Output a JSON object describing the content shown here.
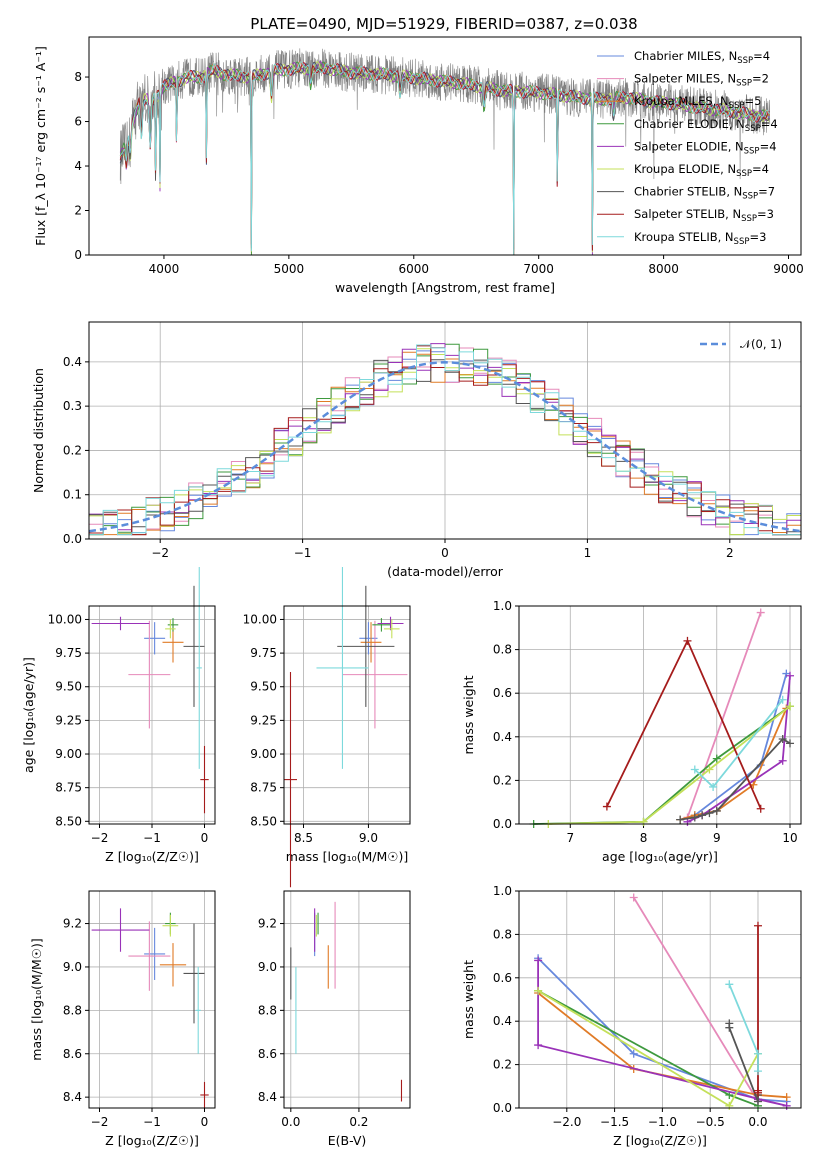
{
  "colors": {
    "Chabrier MILES": "#6688dd",
    "Salpeter MILES": "#e68aba",
    "Kroupa MILES": "#e07b27",
    "Chabrier ELODIE": "#3e9a3e",
    "Salpeter ELODIE": "#9932b8",
    "Kroupa ELODIE": "#c4e05a",
    "Chabrier STELIB": "#555555",
    "Salpeter STELIB": "#a51c1c",
    "Kroupa STELIB": "#7dd9dc",
    "data": "#808080"
  },
  "chart_data": [
    {
      "type": "line",
      "title": "PLATE=0490, MJD=51929, FIBERID=0387, z=0.038",
      "xlabel": "wavelength [Angstrom, rest frame]",
      "ylabel": "Flux [f_λ 10⁻¹⁷ erg cm⁻² s⁻¹ A⁻¹]",
      "xlim": [
        3400,
        9100
      ],
      "ylim": [
        0,
        9.8
      ],
      "xticks": [
        "4000",
        "5000",
        "6000",
        "7000",
        "8000",
        "9000"
      ],
      "yticks": [
        "0",
        "2",
        "4",
        "6",
        "8"
      ],
      "legend_position": "right",
      "series": [
        {
          "name": "Chabrier MILES, N_SSP=4",
          "label": "Chabrier MILES, N",
          "sub": "SSP",
          "n": "=4",
          "key": "Chabrier MILES"
        },
        {
          "name": "Salpeter MILES, N_SSP=2",
          "label": "Salpeter MILES, N",
          "sub": "SSP",
          "n": "=2",
          "key": "Salpeter MILES"
        },
        {
          "name": "Kroupa MILES, N_SSP=5",
          "label": "Kroupa MILES, N",
          "sub": "SSP",
          "n": "=5",
          "key": "Kroupa MILES"
        },
        {
          "name": "Chabrier ELODIE, N_SSP=4",
          "label": "Chabrier ELODIE, N",
          "sub": "SSP",
          "n": "=4",
          "key": "Chabrier ELODIE"
        },
        {
          "name": "Salpeter ELODIE, N_SSP=4",
          "label": "Salpeter ELODIE, N",
          "sub": "SSP",
          "n": "=4",
          "key": "Salpeter ELODIE"
        },
        {
          "name": "Kroupa ELODIE, N_SSP=4",
          "label": "Kroupa ELODIE, N",
          "sub": "SSP",
          "n": "=4",
          "key": "Kroupa ELODIE"
        },
        {
          "name": "Chabrier STELIB, N_SSP=7",
          "label": "Chabrier STELIB, N",
          "sub": "SSP",
          "n": "=7",
          "key": "Chabrier STELIB"
        },
        {
          "name": "Salpeter STELIB, N_SSP=3",
          "label": "Salpeter STELIB, N",
          "sub": "SSP",
          "n": "=3",
          "key": "Salpeter STELIB"
        },
        {
          "name": "Kroupa STELIB, N_SSP=3",
          "label": "Kroupa STELIB, N",
          "sub": "SSP",
          "n": "=3",
          "key": "Kroupa STELIB"
        }
      ],
      "continuum": {
        "x": [
          3650,
          3700,
          3750,
          3800,
          3850,
          3900,
          3950,
          4000,
          4100,
          4200,
          4300,
          4400,
          4500,
          4700,
          4900,
          5100,
          5300,
          5500,
          5800,
          6100,
          6400,
          6700,
          7000,
          7300,
          7500,
          7700,
          7900,
          8100,
          8300,
          8500,
          8700,
          8850
        ],
        "y": [
          4.4,
          5.0,
          6.0,
          6.9,
          7.0,
          6.9,
          7.2,
          7.6,
          7.8,
          8.0,
          8.0,
          8.3,
          8.1,
          8.0,
          8.3,
          8.4,
          8.4,
          8.2,
          8.1,
          7.9,
          7.7,
          7.4,
          7.3,
          7.1,
          7.0,
          7.1,
          6.9,
          6.8,
          6.6,
          6.5,
          6.3,
          6.2
        ]
      },
      "absorption_lines": [
        {
          "x": 3700,
          "depth": 1.0
        },
        {
          "x": 3730,
          "depth": 1.2
        },
        {
          "x": 3820,
          "depth": 1.5
        },
        {
          "x": 3890,
          "depth": 2.0
        },
        {
          "x": 3934,
          "depth": 4.5
        },
        {
          "x": 3968,
          "depth": 4.2
        },
        {
          "x": 4102,
          "depth": 3.2
        },
        {
          "x": 4340,
          "depth": 3.8
        },
        {
          "x": 4700,
          "depth": 7.8
        },
        {
          "x": 4861,
          "depth": 1.2
        },
        {
          "x": 5175,
          "depth": 0.7
        },
        {
          "x": 5890,
          "depth": 0.8
        },
        {
          "x": 6563,
          "depth": 0.9
        },
        {
          "x": 6800,
          "depth": 7.4
        },
        {
          "x": 7150,
          "depth": 5.0
        },
        {
          "x": 7430,
          "depth": 6.8
        },
        {
          "x": 7600,
          "depth": 0.8
        }
      ]
    },
    {
      "type": "line",
      "xlabel": "(data-model)/error",
      "ylabel": "Normed distribution",
      "xlim": [
        -2.5,
        2.5
      ],
      "ylim": [
        0,
        0.49
      ],
      "xticks": [
        "−2",
        "−1",
        "0",
        "1",
        "2"
      ],
      "yticks": [
        "0.0",
        "0.1",
        "0.2",
        "0.3",
        "0.4"
      ],
      "legend": {
        "label": "𝒩(0, 1)",
        "position": "top-right"
      },
      "bin_width": 0.1,
      "bin_start": -2.5,
      "histogram_peak_approx": 0.47
    },
    {
      "type": "scatter",
      "xlabel": "Z [log₁₀(Z/Z☉)]",
      "ylabel": "age  [log₁₀(age/yr)]",
      "xlim": [
        -2.2,
        0.2
      ],
      "ylim": [
        8.48,
        10.1
      ],
      "xticks": [
        "−2",
        "−1",
        "0"
      ],
      "yticks": [
        "8.50",
        "8.75",
        "9.00",
        "9.25",
        "9.50",
        "9.75",
        "10.00"
      ],
      "points": [
        {
          "key": "Chabrier MILES",
          "x": -0.95,
          "y": 9.86,
          "xerr": 0.2,
          "yerr": 0.12
        },
        {
          "key": "Salpeter MILES",
          "x": -1.05,
          "y": 9.59,
          "xerr": 0.4,
          "yerr": 0.4
        },
        {
          "key": "Kroupa MILES",
          "x": -0.6,
          "y": 9.83,
          "xerr": 0.2,
          "yerr": 0.15
        },
        {
          "key": "Chabrier ELODIE",
          "x": -0.6,
          "y": 9.96,
          "xerr": 0.1,
          "yerr": 0.05
        },
        {
          "key": "Salpeter ELODIE",
          "x": -1.6,
          "y": 9.97,
          "xerr": 0.55,
          "yerr": 0.05
        },
        {
          "key": "Kroupa ELODIE",
          "x": -0.65,
          "y": 9.93,
          "xerr": 0.1,
          "yerr": 0.07
        },
        {
          "key": "Chabrier STELIB",
          "x": -0.2,
          "y": 9.8,
          "xerr": 0.2,
          "yerr": 0.45
        },
        {
          "key": "Salpeter STELIB",
          "x": 0.0,
          "y": 8.81,
          "xerr": 0.08,
          "yerr": 0.25
        },
        {
          "key": "Kroupa STELIB",
          "x": -0.1,
          "y": 9.64,
          "xerr": 0.05,
          "yerr": 0.75
        }
      ]
    },
    {
      "type": "scatter",
      "xlabel": "mass [log₁₀(M/M☉)]",
      "ylabel": "",
      "xlim": [
        8.35,
        9.32
      ],
      "ylim": [
        8.48,
        10.1
      ],
      "xticks": [
        "8.5",
        "9.0"
      ],
      "yticks": [
        "8.50",
        "8.75",
        "9.00",
        "9.25",
        "9.50",
        "9.75",
        "10.00"
      ],
      "points": [
        {
          "key": "Chabrier MILES",
          "x": 9.0,
          "y": 9.86,
          "xerr": 0.07,
          "yerr": 0.12
        },
        {
          "key": "Salpeter MILES",
          "x": 9.05,
          "y": 9.59,
          "xerr": 0.25,
          "yerr": 0.4
        },
        {
          "key": "Kroupa MILES",
          "x": 9.02,
          "y": 9.83,
          "xerr": 0.08,
          "yerr": 0.15
        },
        {
          "key": "Chabrier ELODIE",
          "x": 9.1,
          "y": 9.96,
          "xerr": 0.07,
          "yerr": 0.05
        },
        {
          "key": "Salpeter ELODIE",
          "x": 9.17,
          "y": 9.97,
          "xerr": 0.1,
          "yerr": 0.05
        },
        {
          "key": "Kroupa ELODIE",
          "x": 9.18,
          "y": 9.93,
          "xerr": 0.06,
          "yerr": 0.07
        },
        {
          "key": "Chabrier STELIB",
          "x": 8.98,
          "y": 9.8,
          "xerr": 0.22,
          "yerr": 0.45
        },
        {
          "key": "Salpeter STELIB",
          "x": 8.4,
          "y": 8.81,
          "xerr": 0.05,
          "yerr": 0.8
        },
        {
          "key": "Kroupa STELIB",
          "x": 8.8,
          "y": 9.64,
          "xerr": 0.2,
          "yerr": 0.75
        }
      ]
    },
    {
      "type": "line",
      "xlabel": "age  [log₁₀(age/yr)]",
      "ylabel": "mass weight",
      "xlim": [
        6.3,
        10.15
      ],
      "ylim": [
        0,
        1.0
      ],
      "xticks": [
        "7",
        "8",
        "9",
        "10"
      ],
      "yticks": [
        "0.0",
        "0.2",
        "0.4",
        "0.6",
        "0.8",
        "1.0"
      ],
      "series": [
        {
          "key": "Chabrier MILES",
          "x": [
            8.7,
            9.6,
            9.95
          ],
          "y": [
            0.04,
            0.27,
            0.69
          ]
        },
        {
          "key": "Salpeter MILES",
          "x": [
            8.6,
            9.6
          ],
          "y": [
            0.03,
            0.97
          ]
        },
        {
          "key": "Kroupa MILES",
          "x": [
            8.5,
            8.7,
            9.0,
            9.5,
            9.95
          ],
          "y": [
            0.02,
            0.04,
            0.06,
            0.18,
            0.53
          ]
        },
        {
          "key": "Chabrier ELODIE",
          "x": [
            6.5,
            8.0,
            9.0,
            10.0
          ],
          "y": [
            0.0,
            0.01,
            0.3,
            0.54
          ]
        },
        {
          "key": "Salpeter ELODIE",
          "x": [
            8.6,
            8.8,
            9.9,
            10.0
          ],
          "y": [
            0.01,
            0.04,
            0.29,
            0.68
          ]
        },
        {
          "key": "Kroupa ELODIE",
          "x": [
            6.7,
            8.0,
            8.9,
            10.0
          ],
          "y": [
            0.0,
            0.01,
            0.25,
            0.54
          ]
        },
        {
          "key": "Chabrier STELIB",
          "x": [
            8.5,
            8.7,
            8.8,
            8.9,
            9.0,
            9.9,
            10.0
          ],
          "y": [
            0.02,
            0.03,
            0.04,
            0.05,
            0.06,
            0.39,
            0.37
          ]
        },
        {
          "key": "Salpeter STELIB",
          "x": [
            7.5,
            8.6,
            9.6
          ],
          "y": [
            0.08,
            0.84,
            0.07
          ]
        },
        {
          "key": "Kroupa STELIB",
          "x": [
            8.7,
            8.95,
            9.9
          ],
          "y": [
            0.25,
            0.17,
            0.57
          ]
        }
      ]
    },
    {
      "type": "scatter",
      "xlabel": "Z [log₁₀(Z/Z☉)]",
      "ylabel": "mass [log₁₀(M/M☉)]",
      "xlim": [
        -2.2,
        0.2
      ],
      "ylim": [
        8.35,
        9.35
      ],
      "xticks": [
        "−2",
        "−1",
        "0"
      ],
      "yticks": [
        "8.4",
        "8.6",
        "8.8",
        "9.0",
        "9.2"
      ],
      "points": [
        {
          "key": "Chabrier MILES",
          "x": -0.95,
          "y": 9.06,
          "xerr": 0.2,
          "yerr": 0.12
        },
        {
          "key": "Salpeter MILES",
          "x": -1.05,
          "y": 9.05,
          "xerr": 0.4,
          "yerr": 0.16
        },
        {
          "key": "Kroupa MILES",
          "x": -0.6,
          "y": 9.01,
          "xerr": 0.25,
          "yerr": 0.1
        },
        {
          "key": "Chabrier ELODIE",
          "x": -0.65,
          "y": 9.2,
          "xerr": 0.1,
          "yerr": 0.05
        },
        {
          "key": "Salpeter ELODIE",
          "x": -1.6,
          "y": 9.17,
          "xerr": 0.55,
          "yerr": 0.1
        },
        {
          "key": "Kroupa ELODIE",
          "x": -0.65,
          "y": 9.19,
          "xerr": 0.15,
          "yerr": 0.05
        },
        {
          "key": "Chabrier STELIB",
          "x": -0.2,
          "y": 8.97,
          "xerr": 0.2,
          "yerr": 0.23
        },
        {
          "key": "Salpeter STELIB",
          "x": 0.0,
          "y": 8.41,
          "xerr": 0.08,
          "yerr": 0.06
        },
        {
          "key": "Kroupa STELIB",
          "x": -0.12,
          "y": 8.8,
          "xerr": 0.05,
          "yerr": 0.2
        }
      ]
    },
    {
      "type": "scatter",
      "xlabel": "E(B-V)",
      "ylabel": "",
      "xlim": [
        -0.02,
        0.35
      ],
      "ylim": [
        8.35,
        9.35
      ],
      "xticks": [
        "0.0",
        "0.2"
      ],
      "yticks": [
        "8.4",
        "8.6",
        "8.8",
        "9.0",
        "9.2"
      ],
      "points": [
        {
          "key": "Chabrier MILES",
          "x": 0.07,
          "y": 9.15,
          "xerr": 0.0,
          "yerr": 0.1
        },
        {
          "key": "Salpeter MILES",
          "x": 0.13,
          "y": 9.1,
          "xerr": 0.0,
          "yerr": 0.2
        },
        {
          "key": "Kroupa MILES",
          "x": 0.11,
          "y": 9.0,
          "xerr": 0.0,
          "yerr": 0.1
        },
        {
          "key": "Chabrier ELODIE",
          "x": 0.08,
          "y": 9.2,
          "xerr": 0.0,
          "yerr": 0.05
        },
        {
          "key": "Salpeter ELODIE",
          "x": 0.07,
          "y": 9.17,
          "xerr": 0.0,
          "yerr": 0.1
        },
        {
          "key": "Kroupa ELODIE",
          "x": 0.075,
          "y": 9.19,
          "xerr": 0.0,
          "yerr": 0.05
        },
        {
          "key": "Chabrier STELIB",
          "x": 0.0,
          "y": 8.97,
          "xerr": 0.0,
          "yerr": 0.12
        },
        {
          "key": "Salpeter STELIB",
          "x": 0.325,
          "y": 8.43,
          "xerr": 0.0,
          "yerr": 0.05
        },
        {
          "key": "Kroupa STELIB",
          "x": 0.015,
          "y": 8.8,
          "xerr": 0.0,
          "yerr": 0.2
        }
      ]
    },
    {
      "type": "line",
      "xlabel": "Z [log₁₀(Z/Z☉)]",
      "ylabel": "mass weight",
      "xlim": [
        -2.5,
        0.45
      ],
      "ylim": [
        0,
        1.0
      ],
      "xticks": [
        "−2.0",
        "−1.5",
        "−1.0",
        "−0.5",
        "0.0"
      ],
      "yticks": [
        "0.0",
        "0.2",
        "0.4",
        "0.6",
        "0.8",
        "1.0"
      ],
      "series": [
        {
          "key": "Chabrier MILES",
          "x": [
            -2.3,
            -1.3,
            0.0,
            0.3
          ],
          "y": [
            0.69,
            0.25,
            0.04,
            0.03
          ]
        },
        {
          "key": "Salpeter MILES",
          "x": [
            -1.3,
            0.0
          ],
          "y": [
            0.97,
            0.03
          ]
        },
        {
          "key": "Kroupa MILES",
          "x": [
            -2.3,
            -1.3,
            0.0,
            0.3
          ],
          "y": [
            0.53,
            0.18,
            0.06,
            0.05
          ]
        },
        {
          "key": "Chabrier ELODIE",
          "x": [
            -2.3,
            -0.3,
            0.0
          ],
          "y": [
            0.54,
            0.06,
            0.01
          ]
        },
        {
          "key": "Salpeter ELODIE",
          "x": [
            -2.3,
            -2.3,
            0.3,
            0.0
          ],
          "y": [
            0.68,
            0.29,
            0.01,
            0.04
          ]
        },
        {
          "key": "Kroupa ELODIE",
          "x": [
            -2.3,
            -0.3,
            0.0
          ],
          "y": [
            0.54,
            0.01,
            0.25
          ]
        },
        {
          "key": "Chabrier STELIB",
          "x": [
            -0.3,
            -0.3,
            0.0,
            0.0
          ],
          "y": [
            0.39,
            0.37,
            0.03,
            0.06
          ]
        },
        {
          "key": "Salpeter STELIB",
          "x": [
            0.0,
            0.0,
            0.0
          ],
          "y": [
            0.08,
            0.84,
            0.07
          ]
        },
        {
          "key": "Kroupa STELIB",
          "x": [
            -0.3,
            0.0,
            0.0
          ],
          "y": [
            0.57,
            0.25,
            0.17
          ]
        }
      ]
    }
  ]
}
